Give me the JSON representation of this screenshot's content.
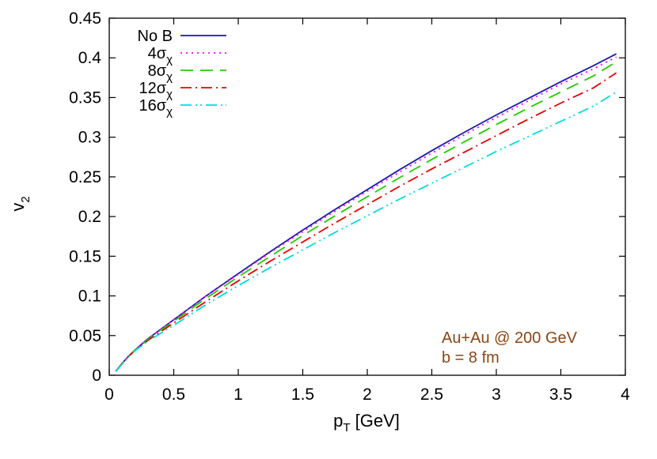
{
  "chart_data": {
    "type": "line",
    "title": "",
    "xlabel": {
      "main": "p",
      "sub": "T",
      "rest": " [GeV]"
    },
    "ylabel": {
      "main": "v",
      "sub": "2"
    },
    "xlim": [
      0,
      4
    ],
    "ylim": [
      0,
      0.45
    ],
    "xticks": [
      "0",
      "0.5",
      "1",
      "1.5",
      "2",
      "2.5",
      "3",
      "3.5",
      "4"
    ],
    "yticks": [
      "0",
      "0.05",
      "0.1",
      "0.15",
      "0.2",
      "0.25",
      "0.3",
      "0.35",
      "0.4",
      "0.45"
    ],
    "grid": false,
    "legend_position": "top-left",
    "annotation": {
      "line1": "Au+Au @ 200 GeV",
      "line2": "b = 8 fm",
      "color": "#8B4513"
    },
    "x": [
      0.05,
      0.1,
      0.15,
      0.2,
      0.3,
      0.4,
      0.5,
      0.75,
      1.0,
      1.25,
      1.5,
      1.75,
      2.0,
      2.25,
      2.5,
      2.75,
      3.0,
      3.25,
      3.5,
      3.75,
      3.93
    ],
    "series": [
      {
        "legend_main": "No B",
        "legend_sub": "",
        "color": "#1a1aaa",
        "dash": "",
        "values": [
          0.005,
          0.015,
          0.024,
          0.032,
          0.046,
          0.058,
          0.07,
          0.1,
          0.128,
          0.156,
          0.183,
          0.209,
          0.234,
          0.259,
          0.283,
          0.306,
          0.328,
          0.349,
          0.37,
          0.39,
          0.405
        ]
      },
      {
        "legend_main": "4σ",
        "legend_sub": "χ",
        "color": "#ff00ff",
        "dash": "2 5",
        "values": [
          0.005,
          0.015,
          0.024,
          0.032,
          0.046,
          0.058,
          0.07,
          0.1,
          0.127,
          0.155,
          0.181,
          0.207,
          0.232,
          0.256,
          0.28,
          0.303,
          0.325,
          0.346,
          0.367,
          0.386,
          0.401
        ]
      },
      {
        "legend_main": "8σ",
        "legend_sub": "χ",
        "color": "#22cc00",
        "dash": "16 9",
        "values": [
          0.005,
          0.015,
          0.024,
          0.032,
          0.045,
          0.057,
          0.068,
          0.097,
          0.124,
          0.15,
          0.176,
          0.201,
          0.225,
          0.249,
          0.272,
          0.294,
          0.316,
          0.337,
          0.357,
          0.377,
          0.395
        ]
      },
      {
        "legend_main": "12σ",
        "legend_sub": "χ",
        "color": "#ee0000",
        "dash": "14 5 2 5",
        "values": [
          0.005,
          0.015,
          0.024,
          0.031,
          0.044,
          0.055,
          0.066,
          0.093,
          0.119,
          0.144,
          0.168,
          0.192,
          0.215,
          0.238,
          0.26,
          0.281,
          0.302,
          0.323,
          0.343,
          0.362,
          0.381
        ]
      },
      {
        "legend_main": "16σ",
        "legend_sub": "χ",
        "color": "#00dddd",
        "dash": "14 5 2 4 2 5",
        "values": [
          0.005,
          0.014,
          0.023,
          0.031,
          0.043,
          0.053,
          0.063,
          0.089,
          0.113,
          0.136,
          0.158,
          0.18,
          0.201,
          0.222,
          0.242,
          0.262,
          0.282,
          0.301,
          0.32,
          0.339,
          0.357
        ]
      }
    ]
  }
}
